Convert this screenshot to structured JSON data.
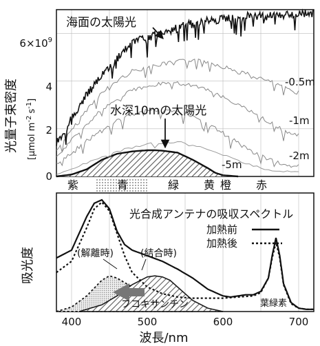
{
  "chart_data": [
    {
      "type": "line",
      "title": "",
      "ylabel": "光量子束密度",
      "yunit_html": "[μmol m⁻² s⁻¹]",
      "yunit_parts": [
        "[μmol m",
        "-2",
        "s",
        "-1",
        "]"
      ],
      "ylim": [
        0,
        7
      ],
      "yticks": [
        0,
        2,
        4
      ],
      "ytick_top": "6×10",
      "ytick_top_exp": "9",
      "xlim": [
        380,
        720
      ],
      "grid": true,
      "series": [
        {
          "name": "海面の太陽光",
          "x": [
            380,
            390,
            400,
            410,
            420,
            430,
            440,
            450,
            460,
            470,
            480,
            490,
            500,
            510,
            520,
            530,
            540,
            550,
            560,
            570,
            580,
            590,
            600,
            610,
            620,
            630,
            640,
            650,
            660,
            670,
            680,
            690,
            700,
            710,
            720
          ],
          "values": [
            1.6,
            2.0,
            2.6,
            3.1,
            3.6,
            4.0,
            4.4,
            4.8,
            5.1,
            5.5,
            5.8,
            5.9,
            6.0,
            6.1,
            6.2,
            6.3,
            6.4,
            6.5,
            6.6,
            6.6,
            6.7,
            6.7,
            6.8,
            6.8,
            6.8,
            6.9,
            6.9,
            6.9,
            6.9,
            6.9,
            6.95,
            7.0,
            7.0,
            7.0,
            7.0
          ]
        },
        {
          "name": "-0.5m",
          "x": [
            380,
            400,
            420,
            440,
            460,
            480,
            500,
            520,
            540,
            560,
            580,
            600,
            620,
            640,
            660,
            680,
            700
          ],
          "values": [
            1.2,
            2.0,
            2.9,
            3.6,
            4.1,
            4.5,
            4.7,
            4.8,
            4.9,
            5.0,
            4.9,
            4.7,
            4.5,
            4.3,
            4.1,
            3.8,
            3.6
          ]
        },
        {
          "name": "-1m",
          "x": [
            380,
            400,
            420,
            440,
            460,
            480,
            500,
            520,
            540,
            560,
            580,
            600,
            620,
            640,
            660,
            680,
            700
          ],
          "values": [
            0.9,
            1.6,
            2.3,
            2.9,
            3.3,
            3.7,
            3.9,
            4.0,
            4.0,
            3.9,
            3.7,
            3.4,
            3.1,
            2.8,
            2.4,
            2.0,
            1.8
          ]
        },
        {
          "name": "-2m",
          "x": [
            380,
            400,
            420,
            440,
            460,
            480,
            500,
            520,
            540,
            560,
            580,
            600,
            620,
            640,
            660,
            680,
            700
          ],
          "values": [
            0.6,
            1.1,
            1.6,
            2.0,
            2.4,
            2.7,
            2.9,
            2.9,
            2.8,
            2.6,
            2.3,
            1.9,
            1.5,
            1.1,
            0.8,
            0.6,
            0.5
          ]
        },
        {
          "name": "水深10mの太陽光",
          "x": [
            380,
            400,
            420,
            440,
            460,
            480,
            500,
            510,
            520,
            540,
            560,
            580,
            590,
            600,
            620
          ],
          "values": [
            0.0,
            0.08,
            0.3,
            0.7,
            0.95,
            1.05,
            1.1,
            1.1,
            1.08,
            1.0,
            0.7,
            0.35,
            0.15,
            0.05,
            0.0
          ]
        }
      ],
      "labels": {
        "sea_surface": "海面の太陽光",
        "depth_10m": "水深10mの太陽光",
        "m05": "-0.5m",
        "m1": "-1m",
        "m2": "-2m",
        "m5": "-5m"
      },
      "color_bands": [
        "紫",
        "青",
        "緑",
        "黄",
        "橙",
        "赤"
      ]
    },
    {
      "type": "line",
      "title": "光合成アンテナの吸収スペクトル",
      "ylabel": "吸光度",
      "xlabel": "波長/nm",
      "xlim": [
        380,
        720
      ],
      "xticks": [
        400,
        500,
        600,
        700
      ],
      "grid": true,
      "series": [
        {
          "name": "加熱前",
          "style": "solid",
          "x": [
            380,
            400,
            420,
            430,
            440,
            450,
            460,
            470,
            480,
            500,
            520,
            540,
            560,
            580,
            600,
            610,
            620,
            630,
            640,
            650,
            660,
            665,
            670,
            675,
            680,
            690,
            700,
            710,
            720
          ],
          "values": [
            0.48,
            0.55,
            0.85,
            0.97,
            1.0,
            0.92,
            0.72,
            0.6,
            0.55,
            0.5,
            0.45,
            0.38,
            0.3,
            0.2,
            0.14,
            0.13,
            0.14,
            0.15,
            0.15,
            0.18,
            0.3,
            0.5,
            0.66,
            0.5,
            0.25,
            0.08,
            0.03,
            0.02,
            0.02
          ]
        },
        {
          "name": "加熱後",
          "style": "dotted",
          "x": [
            380,
            400,
            420,
            430,
            440,
            450,
            460,
            470,
            480,
            500,
            520,
            540,
            560,
            580,
            600,
            620,
            640,
            650,
            660,
            665,
            670,
            675,
            680,
            690,
            700,
            710,
            720
          ],
          "values": [
            0.35,
            0.45,
            0.75,
            0.92,
            0.98,
            0.9,
            0.7,
            0.5,
            0.35,
            0.22,
            0.16,
            0.13,
            0.12,
            0.12,
            0.12,
            0.13,
            0.14,
            0.17,
            0.3,
            0.48,
            0.62,
            0.48,
            0.24,
            0.07,
            0.03,
            0.02,
            0.02
          ]
        },
        {
          "name": "(解離時)",
          "style": "dotted",
          "x": [
            380,
            400,
            420,
            440,
            450,
            460,
            480,
            500,
            520,
            540,
            560
          ],
          "values": [
            0.0,
            0.04,
            0.14,
            0.28,
            0.32,
            0.3,
            0.22,
            0.12,
            0.05,
            0.01,
            0.0
          ]
        },
        {
          "name": "(結合時)",
          "style": "solid",
          "x": [
            410,
            440,
            460,
            480,
            500,
            510,
            520,
            530,
            540,
            560,
            580,
            600
          ],
          "values": [
            0.0,
            0.06,
            0.14,
            0.24,
            0.31,
            0.32,
            0.31,
            0.28,
            0.22,
            0.1,
            0.03,
            0.0
          ]
        }
      ],
      "labels": {
        "dissociated": "(解離時)",
        "bound": "(結合時)",
        "fucoxanthin": "フコキサンチン",
        "chlorophyll": "葉緑素"
      },
      "legend": {
        "placement": "top-right",
        "solid": "加熱前",
        "dotted": "加熱後"
      }
    }
  ]
}
